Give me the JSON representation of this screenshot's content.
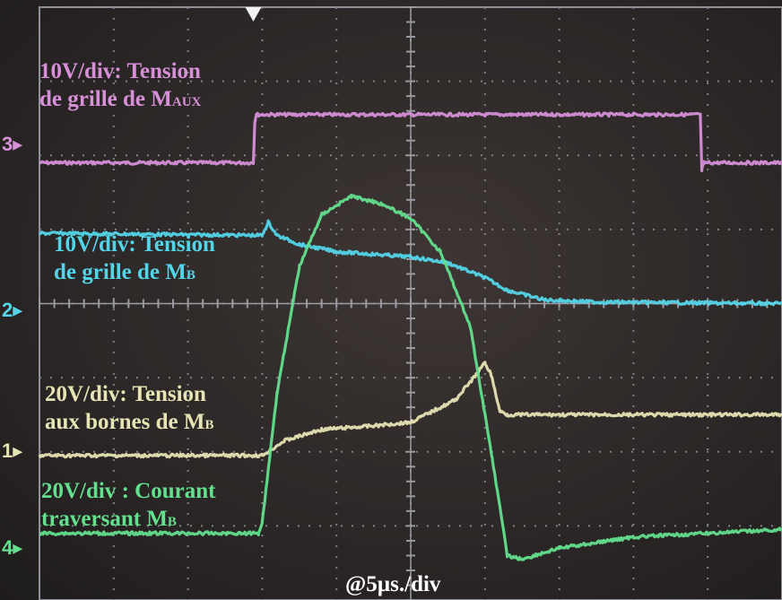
{
  "chart_data": {
    "type": "line",
    "timebase_label": "@5µs./div",
    "grid": true,
    "divisions": {
      "x": 10,
      "y": 8
    },
    "x_unit": "div",
    "channels": [
      {
        "id": "ch3",
        "marker": "3",
        "color": "#d78fd8",
        "label_lines": [
          {
            "text": "10V/div: Tension",
            "sub": ""
          },
          {
            "text": "de grille de M",
            "sub": "AUX"
          }
        ],
        "points": [
          [
            0,
            1.9
          ],
          [
            2.88,
            1.9
          ],
          [
            2.9,
            2.45
          ],
          [
            2.92,
            2.55
          ],
          [
            8.9,
            2.55
          ],
          [
            8.92,
            1.8
          ],
          [
            8.95,
            1.9
          ],
          [
            10,
            1.9
          ]
        ]
      },
      {
        "id": "ch2",
        "marker": "2",
        "color": "#53d5e9",
        "label_lines": [
          {
            "text": "10V/div: Tension",
            "sub": ""
          },
          {
            "text": "de grille de M",
            "sub": "B"
          }
        ],
        "points": [
          [
            0,
            0.95
          ],
          [
            3.0,
            0.92
          ],
          [
            3.08,
            1.1
          ],
          [
            3.2,
            0.92
          ],
          [
            3.5,
            0.8
          ],
          [
            4.0,
            0.7
          ],
          [
            5.0,
            0.63
          ],
          [
            5.5,
            0.55
          ],
          [
            6.0,
            0.35
          ],
          [
            6.3,
            0.18
          ],
          [
            6.8,
            0.05
          ],
          [
            7.5,
            0.02
          ],
          [
            10,
            0.0
          ]
        ]
      },
      {
        "id": "ch1",
        "marker": "1",
        "color": "#e6e3b4",
        "label_lines": [
          {
            "text": "20V/div: Tension",
            "sub": ""
          },
          {
            "text": "aux bornes de  M",
            "sub": "B"
          }
        ],
        "points": [
          [
            0,
            -2.05
          ],
          [
            3.0,
            -2.05
          ],
          [
            3.3,
            -1.85
          ],
          [
            3.8,
            -1.7
          ],
          [
            4.5,
            -1.65
          ],
          [
            5.0,
            -1.6
          ],
          [
            5.6,
            -1.3
          ],
          [
            5.85,
            -1.0
          ],
          [
            6.0,
            -0.8
          ],
          [
            6.08,
            -0.95
          ],
          [
            6.2,
            -1.45
          ],
          [
            6.3,
            -1.5
          ],
          [
            10,
            -1.5
          ]
        ]
      },
      {
        "id": "ch4",
        "marker": "4",
        "color": "#63df8e",
        "label_lines": [
          {
            "text": "20V/div : Courant",
            "sub": ""
          },
          {
            "text": "traversant M",
            "sub": "B"
          }
        ],
        "points": [
          [
            0,
            -3.1
          ],
          [
            2.95,
            -3.1
          ],
          [
            3.0,
            -2.95
          ],
          [
            3.2,
            -1.2
          ],
          [
            3.5,
            0.5
          ],
          [
            3.8,
            1.2
          ],
          [
            4.2,
            1.45
          ],
          [
            4.6,
            1.35
          ],
          [
            5.0,
            1.15
          ],
          [
            5.4,
            0.7
          ],
          [
            5.8,
            -0.3
          ],
          [
            6.1,
            -2.1
          ],
          [
            6.3,
            -3.4
          ],
          [
            6.5,
            -3.45
          ],
          [
            7.0,
            -3.3
          ],
          [
            8.0,
            -3.15
          ],
          [
            9.0,
            -3.1
          ],
          [
            10,
            -3.05
          ]
        ]
      }
    ]
  }
}
